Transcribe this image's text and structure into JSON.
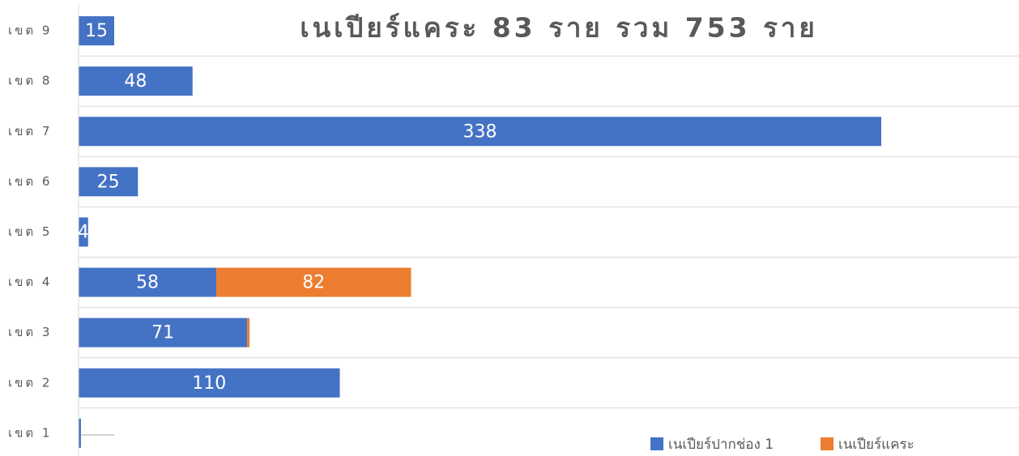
{
  "chart_data": {
    "type": "bar",
    "orientation": "horizontal",
    "stacked": true,
    "title": "เนเปียร์แคระ 83 ราย รวม 753 ราย",
    "categories": [
      "เขต 1",
      "เขต 2",
      "เขต 3",
      "เขต 4",
      "เขต 5",
      "เขต 6",
      "เขต 7",
      "เขต 8",
      "เขต 9"
    ],
    "series": [
      {
        "name": "เนเปียร์ปากช่อง 1",
        "color": "#4472c4",
        "values": [
          1,
          110,
          71,
          58,
          4,
          25,
          338,
          48,
          15
        ]
      },
      {
        "name": "เนเปียร์แคระ",
        "color": "#ed7d31",
        "values": [
          null,
          null,
          1,
          82,
          null,
          null,
          null,
          null,
          null
        ]
      }
    ],
    "xlim": [
      0,
      396
    ],
    "legend": "bottom-right"
  }
}
